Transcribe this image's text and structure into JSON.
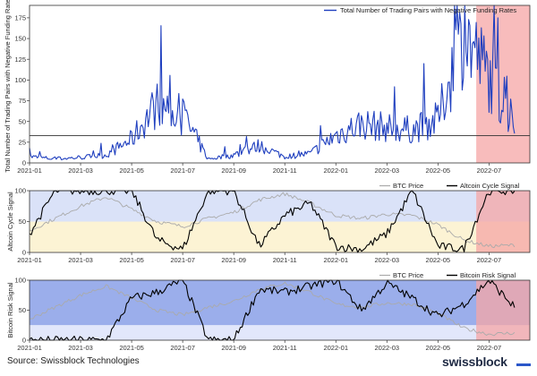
{
  "source": "Source: Swissblock Technologies",
  "brand": {
    "name": "swissblock",
    "mark_color": "#2b57c9"
  },
  "chart_data": [
    {
      "type": "line",
      "title": "",
      "xlabel": "",
      "ylabel": "Total Number of Trading Pairs with Negative Funding Rates",
      "ylim": [
        0,
        190
      ],
      "yticks": [
        0,
        25,
        50,
        75,
        100,
        125,
        150,
        175
      ],
      "xticks": [
        "2021-01",
        "2021-03",
        "2021-05",
        "2021-07",
        "2021-09",
        "2021-11",
        "2022-01",
        "2022-03",
        "2022-05",
        "2022-07"
      ],
      "reference_line": 33,
      "highlight_region": [
        "2022-06",
        "2022-08"
      ],
      "colors": {
        "line": "#1f3fbf",
        "highlight": "#f5a6a6",
        "reference": "#333333"
      },
      "series": [
        {
          "name": "Total Number of Trading Pairs with Negative Funding Rates",
          "x": [
            "2021-01",
            "2021-02",
            "2021-03",
            "2021-04",
            "2021-05",
            "2021-06",
            "2021-07",
            "2021-08",
            "2021-09",
            "2021-10",
            "2021-11",
            "2021-12",
            "2022-01",
            "2022-02",
            "2022-03",
            "2022-04",
            "2022-05",
            "2022-06",
            "2022-07",
            "2022-08"
          ],
          "values": [
            8,
            5,
            7,
            10,
            30,
            75,
            60,
            5,
            10,
            22,
            8,
            12,
            35,
            50,
            45,
            42,
            55,
            165,
            110,
            40
          ]
        }
      ]
    },
    {
      "type": "line",
      "title": "",
      "xlabel": "",
      "ylabel": "Altcoin Cycle Signal",
      "ylim": [
        0,
        100
      ],
      "yticks": [
        0,
        50,
        100
      ],
      "xticks": [
        "2021-01",
        "2021-03",
        "2021-05",
        "2021-07",
        "2021-09",
        "2021-11",
        "2022-01",
        "2022-03",
        "2022-05",
        "2022-07"
      ],
      "bands": [
        {
          "from": 50,
          "to": 100,
          "color": "#d4ddf7"
        },
        {
          "from": 0,
          "to": 50,
          "color": "#fbf1cc"
        }
      ],
      "highlight_region": [
        "2022-06",
        "2022-08"
      ],
      "legend": [
        "BTC Price",
        "Altcoin Cycle Signal"
      ],
      "colors": {
        "btc": "#aaaaaa",
        "signal": "#000000"
      },
      "series": [
        {
          "name": "BTC Price",
          "x": [
            "2021-01",
            "2021-02",
            "2021-03",
            "2021-04",
            "2021-05",
            "2021-06",
            "2021-07",
            "2021-08",
            "2021-09",
            "2021-10",
            "2021-11",
            "2021-12",
            "2022-01",
            "2022-02",
            "2022-03",
            "2022-04",
            "2022-05",
            "2022-06",
            "2022-07",
            "2022-08"
          ],
          "values": [
            35,
            55,
            75,
            90,
            70,
            50,
            42,
            55,
            65,
            85,
            95,
            80,
            60,
            55,
            62,
            60,
            45,
            20,
            10,
            12
          ]
        },
        {
          "name": "Altcoin Cycle Signal",
          "x": [
            "2021-01",
            "2021-02",
            "2021-03",
            "2021-04",
            "2021-05",
            "2021-06",
            "2021-07",
            "2021-08",
            "2021-09",
            "2021-10",
            "2021-11",
            "2021-12",
            "2022-01",
            "2022-02",
            "2022-03",
            "2022-04",
            "2022-05",
            "2022-06",
            "2022-07",
            "2022-08"
          ],
          "values": [
            30,
            100,
            100,
            100,
            100,
            20,
            5,
            100,
            100,
            10,
            60,
            80,
            10,
            5,
            30,
            100,
            10,
            5,
            100,
            100
          ]
        }
      ]
    },
    {
      "type": "line",
      "title": "",
      "xlabel": "",
      "ylabel": "Bitcoin Risk Signal",
      "ylim": [
        0,
        100
      ],
      "yticks": [
        0,
        50,
        100
      ],
      "xticks": [
        "2021-01",
        "2021-03",
        "2021-05",
        "2021-07",
        "2021-09",
        "2021-11",
        "2022-01",
        "2022-03",
        "2022-05",
        "2022-07"
      ],
      "bands": [
        {
          "from": 25,
          "to": 100,
          "color": "#8aa0e8"
        },
        {
          "from": 0,
          "to": 25,
          "color": "#dde3fa"
        }
      ],
      "highlight_region": [
        "2022-06",
        "2022-08"
      ],
      "legend": [
        "BTC Price",
        "Bitcoin Risk Signal"
      ],
      "colors": {
        "btc": "#aaaaaa",
        "signal": "#000000"
      },
      "series": [
        {
          "name": "BTC Price",
          "x": [
            "2021-01",
            "2021-02",
            "2021-03",
            "2021-04",
            "2021-05",
            "2021-06",
            "2021-07",
            "2021-08",
            "2021-09",
            "2021-10",
            "2021-11",
            "2021-12",
            "2022-01",
            "2022-02",
            "2022-03",
            "2022-04",
            "2022-05",
            "2022-06",
            "2022-07",
            "2022-08"
          ],
          "values": [
            35,
            55,
            75,
            90,
            70,
            50,
            42,
            55,
            65,
            85,
            95,
            80,
            60,
            55,
            62,
            60,
            45,
            20,
            10,
            12
          ]
        },
        {
          "name": "Bitcoin Risk Signal",
          "x": [
            "2021-01",
            "2021-02",
            "2021-03",
            "2021-04",
            "2021-05",
            "2021-06",
            "2021-07",
            "2021-08",
            "2021-09",
            "2021-10",
            "2021-11",
            "2021-12",
            "2022-01",
            "2022-02",
            "2022-03",
            "2022-04",
            "2022-05",
            "2022-06",
            "2022-07",
            "2022-08"
          ],
          "values": [
            0,
            0,
            0,
            0,
            70,
            80,
            100,
            0,
            0,
            85,
            80,
            90,
            100,
            50,
            95,
            70,
            40,
            60,
            100,
            55
          ]
        }
      ]
    }
  ]
}
